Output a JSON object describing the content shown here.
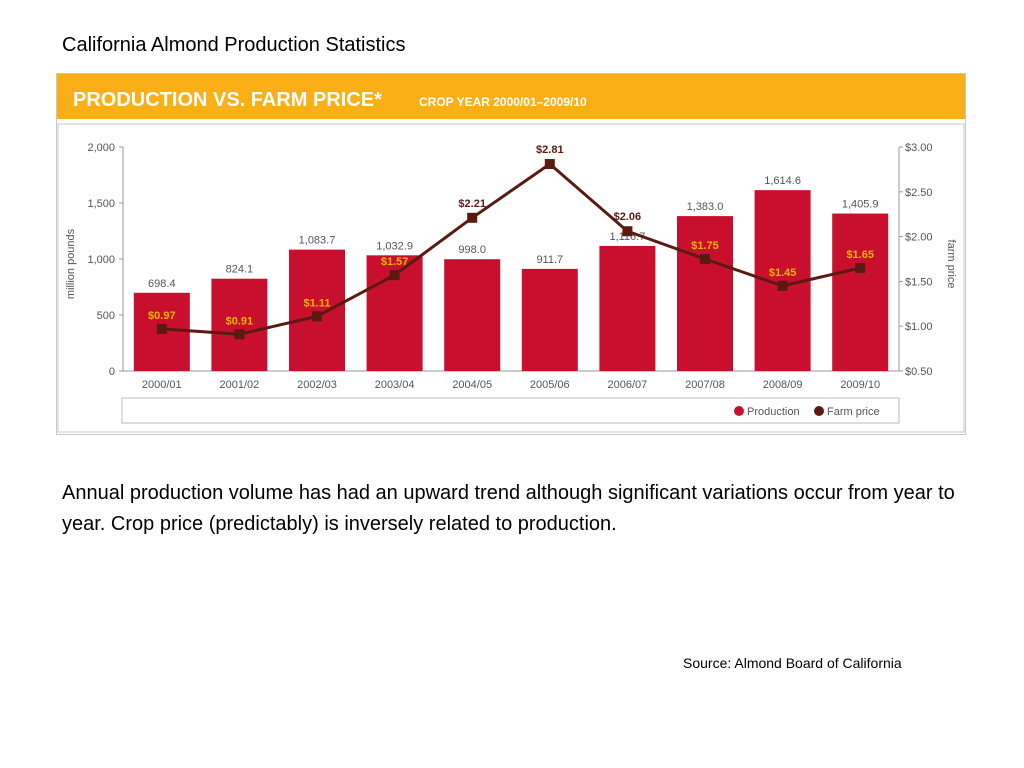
{
  "slide": {
    "title": "California Almond Production Statistics",
    "body": "Annual production volume has had an upward trend although significant variations occur from year to year.  Crop price (predictably) is inversely related to production.",
    "source": "Source: Almond Board of California"
  },
  "colors": {
    "header_bg": "#fbaf17",
    "bar": "#c8102e",
    "line": "#5a1a12",
    "axis_text": "#555555",
    "frame": "#c8c8c8"
  },
  "chart_data": {
    "type": "bar",
    "title": "PRODUCTION VS. FARM PRICE*",
    "subtitle": "CROP YEAR 2000/01–2009/10",
    "categories": [
      "2000/01",
      "2001/02",
      "2002/03",
      "2003/04",
      "2004/05",
      "2005/06",
      "2006/07",
      "2007/08",
      "2008/09",
      "2009/10"
    ],
    "series": [
      {
        "name": "Production",
        "type": "bar",
        "axis": "left",
        "values": [
          698.4,
          824.1,
          1083.7,
          1032.9,
          998.0,
          911.7,
          1116.7,
          1383.0,
          1614.6,
          1405.9
        ],
        "labels": [
          "698.4",
          "824.1",
          "1,083.7",
          "1,032.9",
          "998.0",
          "911.7",
          "1,116.7",
          "1,383.0",
          "1,614.6",
          "1,405.9"
        ]
      },
      {
        "name": "Farm price",
        "type": "line",
        "axis": "right",
        "values": [
          0.97,
          0.91,
          1.11,
          1.57,
          2.21,
          2.81,
          2.06,
          1.75,
          1.45,
          1.65
        ],
        "labels": [
          "$0.97",
          "$0.91",
          "$1.11",
          "$1.57",
          "$2.21",
          "$2.81",
          "$2.06",
          "$1.75",
          "$1.45",
          "$1.65"
        ]
      }
    ],
    "ylabel": "million pounds",
    "ylim": [
      0,
      2000
    ],
    "y_ticks": [
      "0",
      "500",
      "1,000",
      "1,500",
      "2,000"
    ],
    "y_tick_values": [
      0,
      500,
      1000,
      1500,
      2000
    ],
    "y2label": "farm price",
    "y2lim": [
      0.5,
      3.0
    ],
    "y2_ticks": [
      "$0.50",
      "$1.00",
      "$1.50",
      "$2.00",
      "$2.50",
      "$3.00"
    ],
    "y2_tick_values": [
      0.5,
      1.0,
      1.5,
      2.0,
      2.5,
      3.0
    ],
    "legend_placement": "bottom-right",
    "grid": false
  }
}
